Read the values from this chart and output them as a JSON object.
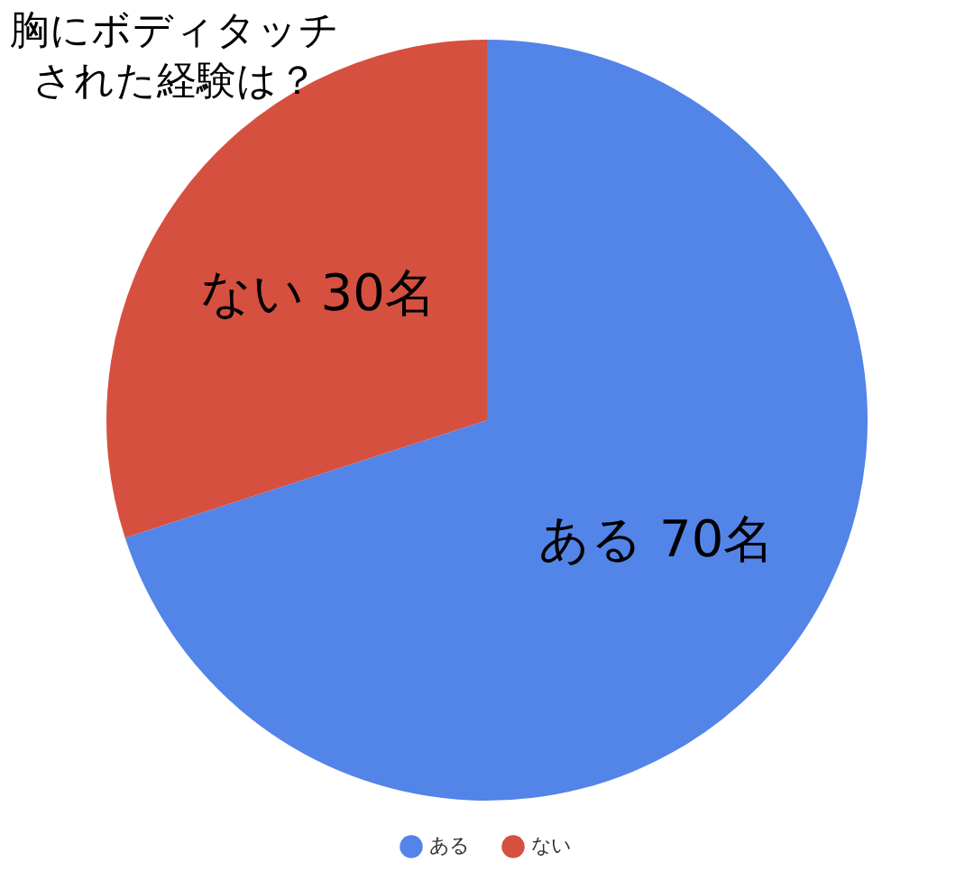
{
  "chart_data": {
    "type": "pie",
    "title": "胸にボディタッチされた経験は？",
    "categories": [
      "ある",
      "ない"
    ],
    "values": [
      70,
      30
    ],
    "colors": [
      "#5384e8",
      "#d6503f"
    ],
    "value_labels": [
      "ある 70名",
      "ない 30名"
    ],
    "legend": "bottom"
  }
}
